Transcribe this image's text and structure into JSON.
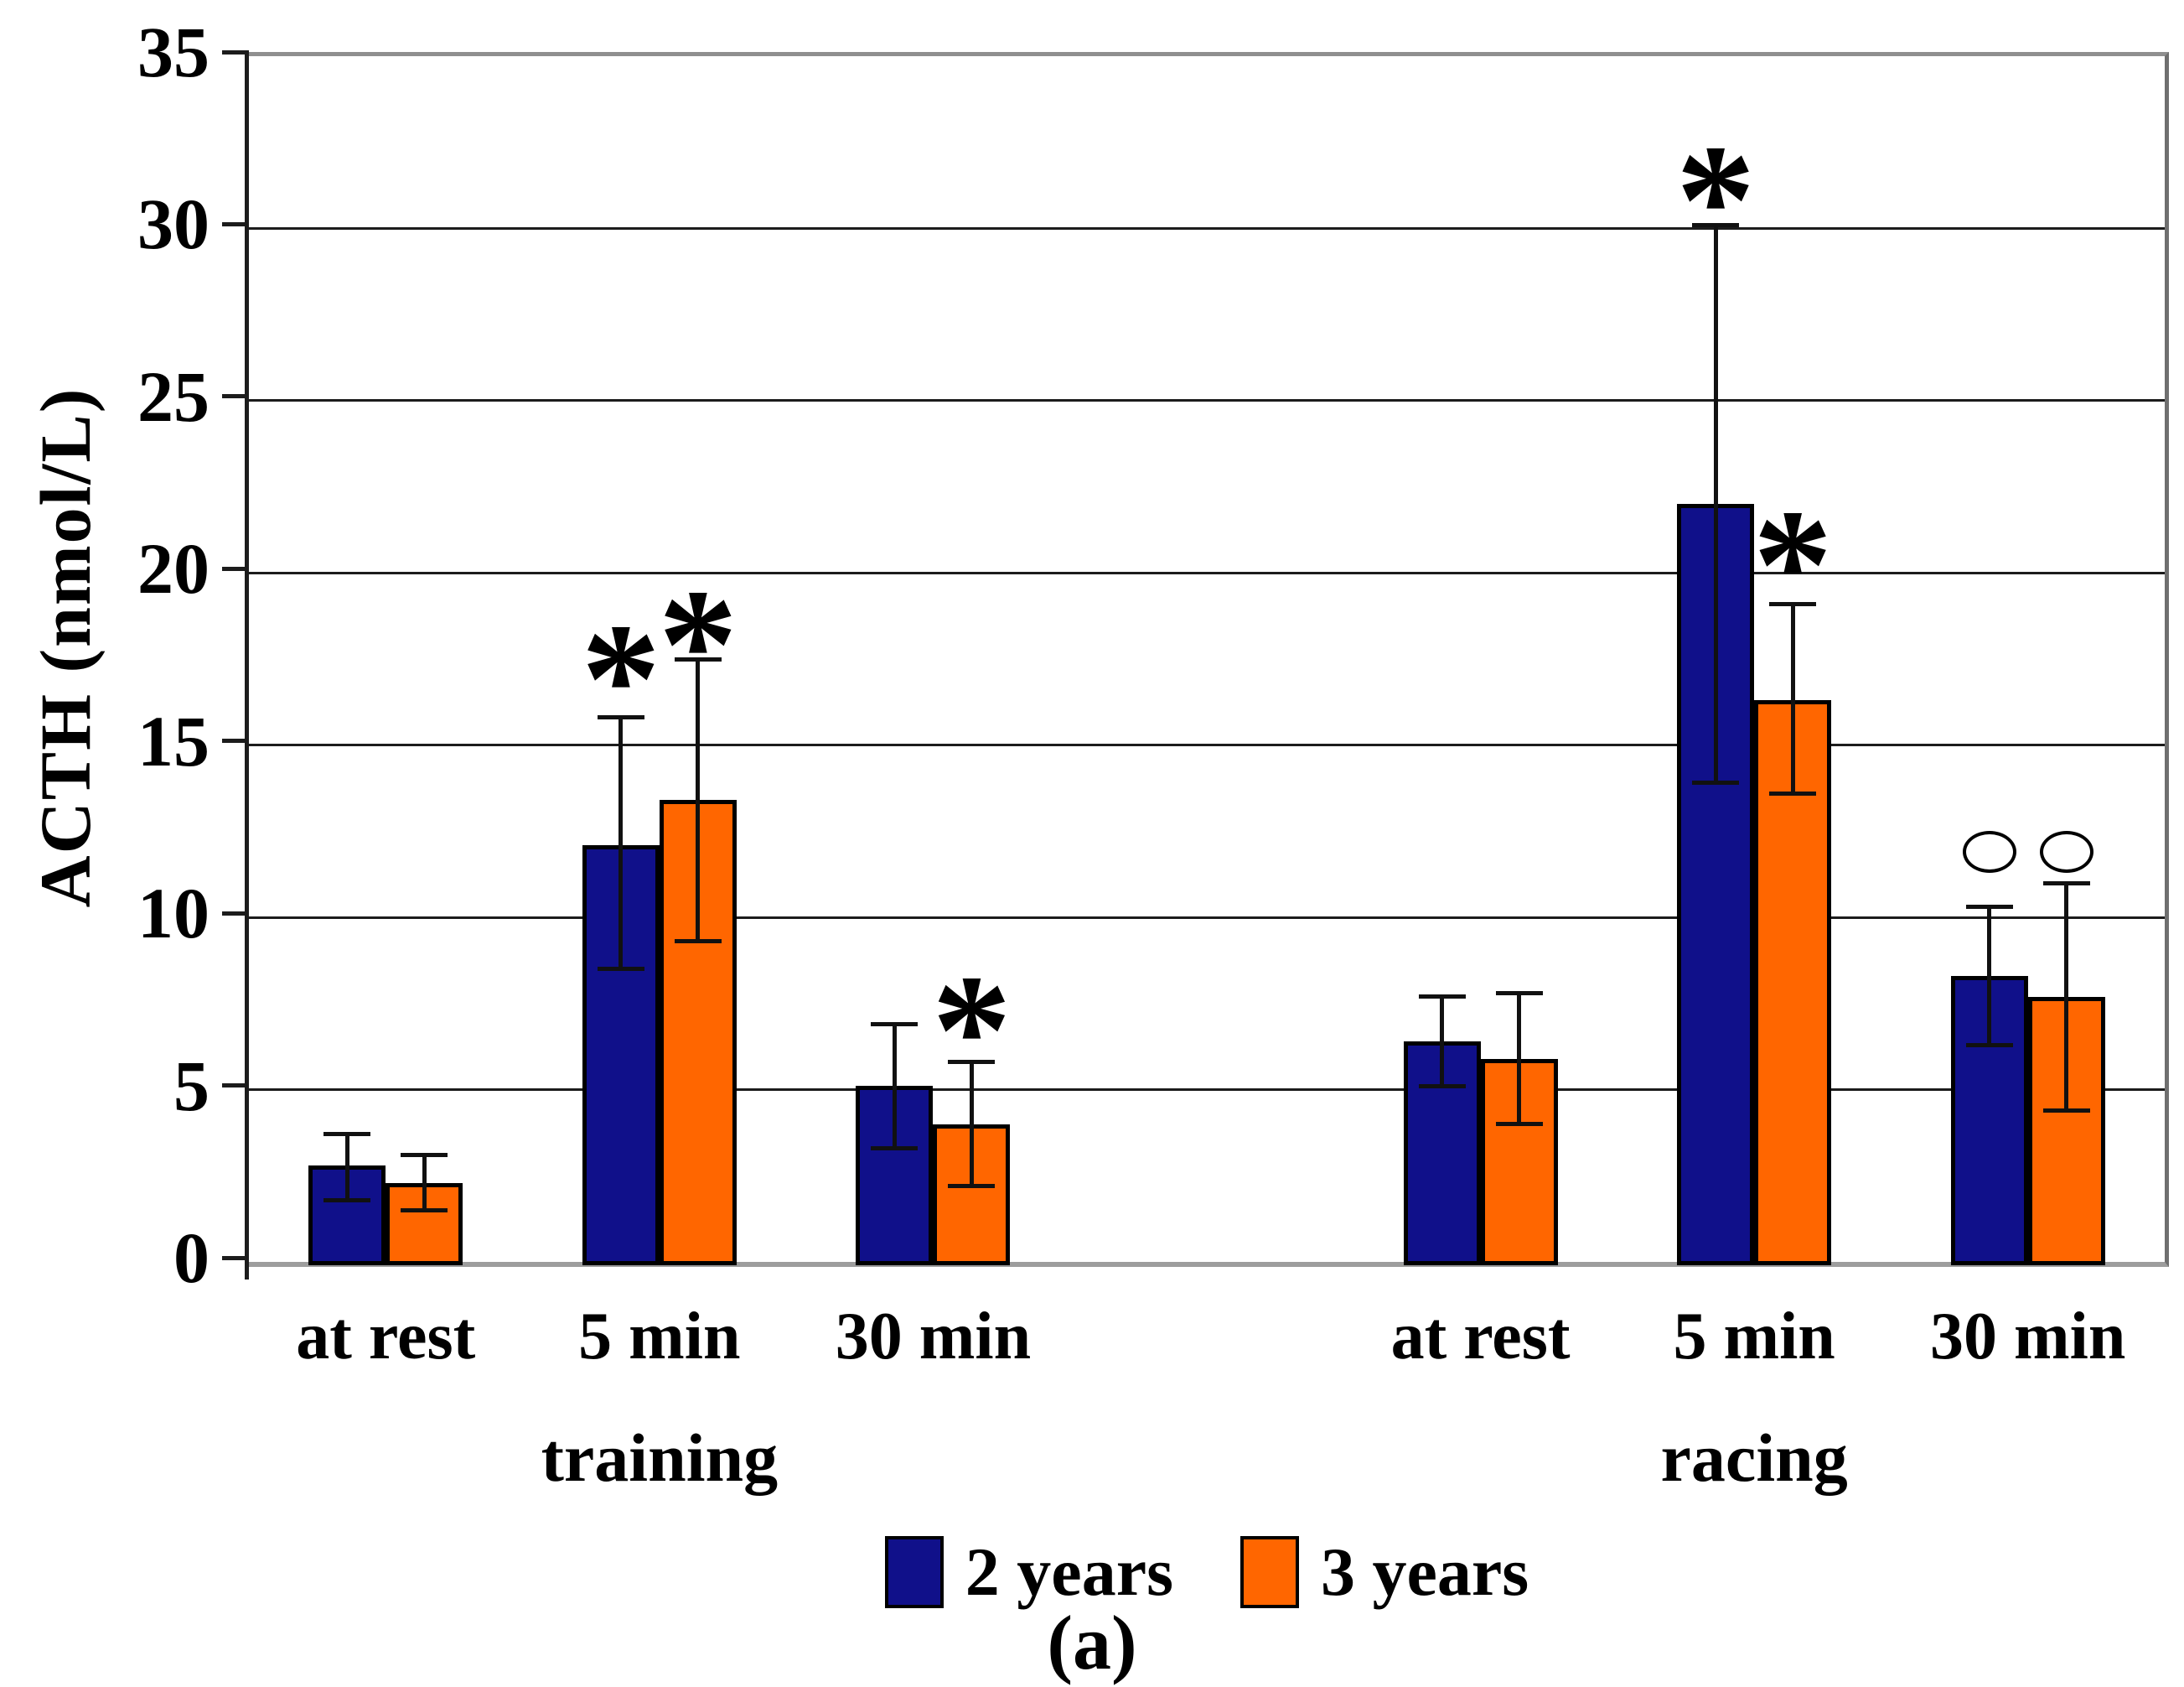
{
  "figure": {
    "caption": "(a)"
  },
  "chart_data": {
    "type": "bar",
    "title": "",
    "ylabel": "ACTH (nmol/L)",
    "xlabel": "",
    "ylim": [
      0,
      35
    ],
    "ytick_step": 5,
    "ytick_labels": [
      "0",
      "5",
      "10",
      "15",
      "20",
      "25",
      "30",
      "35"
    ],
    "grid": true,
    "legend_position": "bottom",
    "categories": [
      "at rest",
      "5 min",
      "30 min",
      "",
      "at rest",
      "5 min",
      "30 min"
    ],
    "section_labels": [
      {
        "text": "training",
        "slot_index": 1
      },
      {
        "text": "racing",
        "slot_index": 5
      }
    ],
    "series": [
      {
        "name": "2 years",
        "color": "#10108A",
        "values": [
          2.8,
          12.1,
          5.1,
          null,
          6.4,
          22.0,
          8.3
        ],
        "err_low": [
          1.8,
          8.5,
          3.3,
          null,
          5.1,
          13.9,
          6.3
        ],
        "err_high": [
          3.7,
          15.8,
          6.9,
          null,
          7.7,
          30.1,
          10.3
        ]
      },
      {
        "name": "3 years",
        "color": "#FF6600",
        "values": [
          2.3,
          13.4,
          4.0,
          null,
          5.9,
          16.3,
          7.7
        ],
        "err_low": [
          1.5,
          9.3,
          2.2,
          null,
          4.0,
          13.6,
          4.4
        ],
        "err_high": [
          3.1,
          17.5,
          5.8,
          null,
          7.8,
          19.1,
          11.0
        ]
      }
    ],
    "annotations": [
      {
        "symbol": "*",
        "slot_index": 1,
        "series_index": 0,
        "y": 17.7
      },
      {
        "symbol": "*",
        "slot_index": 1,
        "series_index": 1,
        "y": 18.7
      },
      {
        "symbol": "*",
        "slot_index": 2,
        "series_index": 1,
        "y": 7.5
      },
      {
        "symbol": "*",
        "slot_index": 5,
        "series_index": 0,
        "y": 31.6
      },
      {
        "symbol": "*",
        "slot_index": 5,
        "series_index": 1,
        "y": 21.0
      },
      {
        "symbol": "circle",
        "slot_index": 6,
        "series_index": 0,
        "y": 11.9
      },
      {
        "symbol": "circle",
        "slot_index": 6,
        "series_index": 1,
        "y": 11.9
      }
    ]
  }
}
